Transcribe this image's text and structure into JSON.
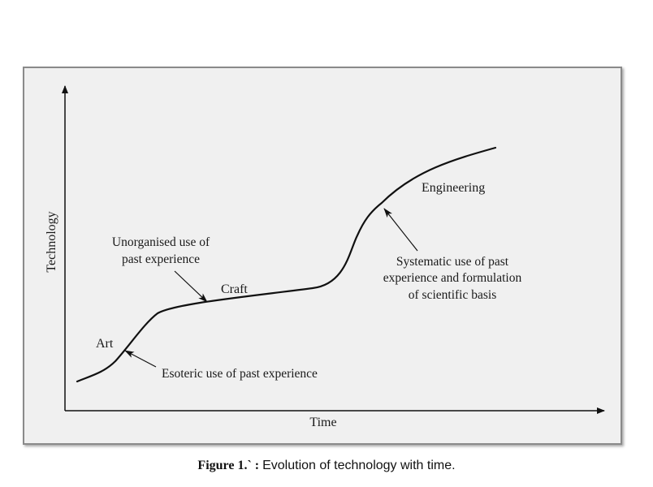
{
  "diagram": {
    "y_axis_label": "Technology",
    "x_axis_label": "Time",
    "stages": {
      "art": "Art",
      "craft": "Craft",
      "engineering": "Engineering"
    },
    "annotations": {
      "esoteric": "Esoteric use of past experience",
      "unorganised_line1": "Unorganised use of",
      "unorganised_line2": "past experience",
      "systematic_line1": "Systematic use of past",
      "systematic_line2": "experience and formulation",
      "systematic_line3": "of scientific basis"
    }
  },
  "caption": {
    "label": "Figure 1.",
    "separator": "` :",
    "text": "Evolution of technology with time."
  },
  "colors": {
    "frame_background": "#f0f0f0",
    "line": "#111111"
  }
}
